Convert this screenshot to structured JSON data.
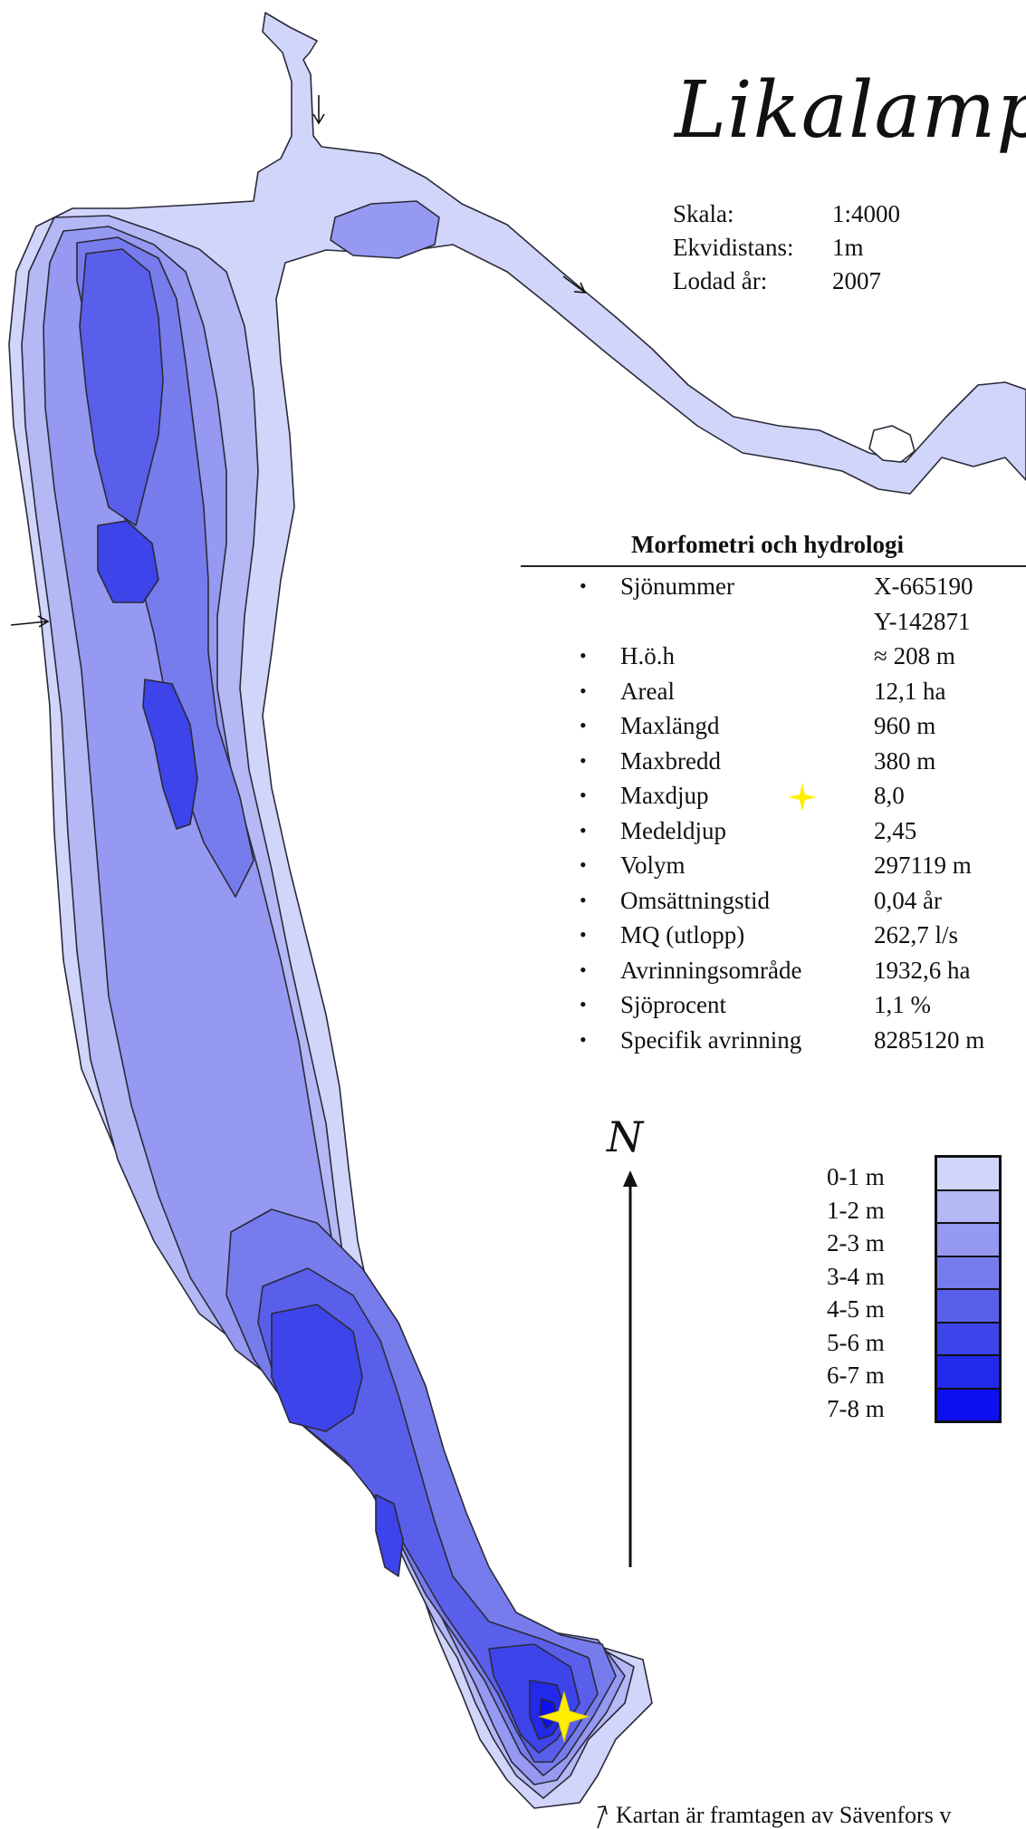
{
  "title": "Likalampi",
  "meta": {
    "rows": [
      {
        "label": "Skala:",
        "value": "1:4000"
      },
      {
        "label": "Ekvidistans:",
        "value": "1m"
      },
      {
        "label": "Lodad år:",
        "value": "2007"
      }
    ]
  },
  "morphometry": {
    "heading": "Morfometri och hydrologi",
    "bullet": "•",
    "rows": [
      {
        "label": "Sjönummer",
        "value": "X-665190"
      },
      {
        "label": "",
        "value": "Y-142871"
      },
      {
        "label": "H.ö.h",
        "value": "≈ 208 m"
      },
      {
        "label": "Areal",
        "value": "12,1 ha"
      },
      {
        "label": "Maxlängd",
        "value": "960 m"
      },
      {
        "label": "Maxbredd",
        "value": "380 m"
      },
      {
        "label": "Maxdjup",
        "value": "8,0"
      },
      {
        "label": "Medeldjup",
        "value": "2,45"
      },
      {
        "label": "Volym",
        "value": "297119 m"
      },
      {
        "label": "Omsättningstid",
        "value": "0,04 år"
      },
      {
        "label": "MQ (utlopp)",
        "value": "262,7 l/s"
      },
      {
        "label": "Avrinningsområde",
        "value": "1932,6 ha"
      },
      {
        "label": "Sjöprocent",
        "value": "1,1 %"
      },
      {
        "label": "Specifik avrinning",
        "value": "8285120 m"
      }
    ]
  },
  "north_label": "N",
  "legend": [
    {
      "label": "0-1 m",
      "color": "#d2d5fa"
    },
    {
      "label": "1-2 m",
      "color": "#b4b8f5"
    },
    {
      "label": "2-3 m",
      "color": "#9599f1"
    },
    {
      "label": "3-4 m",
      "color": "#777ced"
    },
    {
      "label": "4-5 m",
      "color": "#595fea"
    },
    {
      "label": "5-6 m",
      "color": "#3d44e9"
    },
    {
      "label": "6-7 m",
      "color": "#2229ea"
    },
    {
      "label": "7-8 m",
      "color": "#0d10ee"
    }
  ],
  "max_depth_marker_color": "#ffee00",
  "icons": [
    "inlet-arrow-icon",
    "outlet-arrow-icon",
    "max-depth-star-icon",
    "north-arrow-icon"
  ],
  "footer": "Kartan är framtagen av Sävenfors v"
}
